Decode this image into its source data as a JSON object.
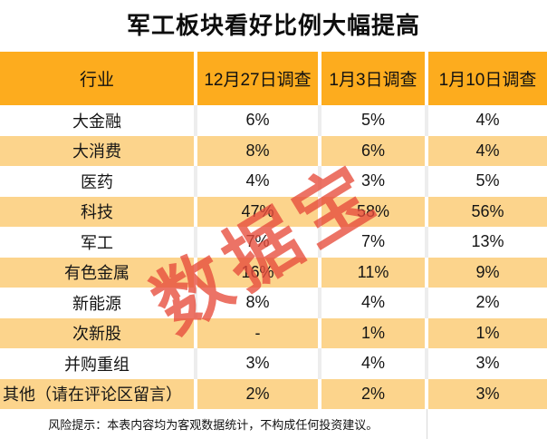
{
  "title": "军工板块看好比例大幅提高",
  "watermark": "数据宝",
  "footer": {
    "note": "风险提示：本表内容均为客观数据统计，不构成任何投资建议。"
  },
  "colors": {
    "header_bg": "#FDAC1E",
    "row_alt_bg": "#FCD48C",
    "watermark": "#E74C3C",
    "text": "#1A1A1A"
  },
  "chart_data": {
    "type": "table",
    "title": "军工板块看好比例大幅提高",
    "columns": [
      "行业",
      "12月27日调查",
      "1月3日调查",
      "1月10日调查"
    ],
    "rows": [
      [
        "大金融",
        "6%",
        "5%",
        "4%"
      ],
      [
        "大消费",
        "8%",
        "6%",
        "4%"
      ],
      [
        "医药",
        "4%",
        "3%",
        "5%"
      ],
      [
        "科技",
        "47%",
        "58%",
        "56%"
      ],
      [
        "军工",
        "7%",
        "7%",
        "13%"
      ],
      [
        "有色金属",
        "16%",
        "11%",
        "9%"
      ],
      [
        "新能源",
        "8%",
        "4%",
        "2%"
      ],
      [
        "次新股",
        "-",
        "1%",
        "1%"
      ],
      [
        "并购重组",
        "3%",
        "4%",
        "3%"
      ],
      [
        "其他（请在评论区留言）",
        "2%",
        "2%",
        "3%"
      ]
    ],
    "layout": {
      "alternating_row_shading": true,
      "first_data_row_background": "white",
      "last_row_label_alignment": "left"
    }
  }
}
